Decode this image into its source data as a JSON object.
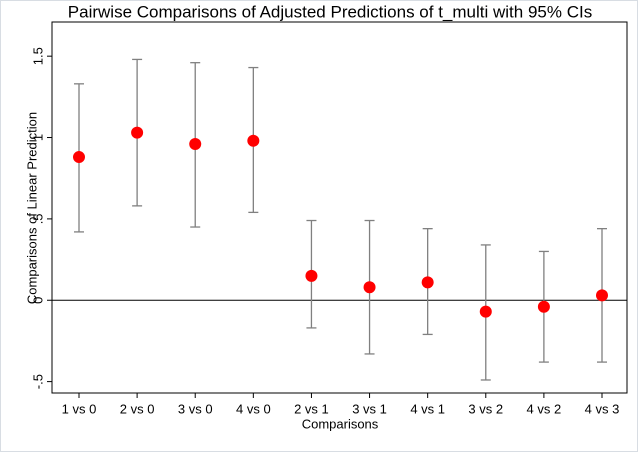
{
  "chart_data": {
    "type": "errorbar",
    "title": "Pairwise Comparisons of Adjusted Predictions of t_multi with 95% CIs",
    "x_label": "Comparisons",
    "y_label": "Comparisons of Linear Prediction",
    "categories": [
      "1 vs 0",
      "2 vs 0",
      "3 vs 0",
      "4 vs 0",
      "2 vs 1",
      "3 vs 1",
      "4 vs 1",
      "3 vs 2",
      "4 vs 2",
      "4 vs 3"
    ],
    "values": [
      0.88,
      1.03,
      0.96,
      0.98,
      0.15,
      0.08,
      0.11,
      -0.07,
      -0.04,
      0.03
    ],
    "ci_lower": [
      0.42,
      0.58,
      0.45,
      0.54,
      -0.17,
      -0.33,
      -0.21,
      -0.49,
      -0.38,
      -0.38
    ],
    "ci_upper": [
      1.33,
      1.48,
      1.46,
      1.43,
      0.49,
      0.49,
      0.44,
      0.34,
      0.3,
      0.44
    ],
    "color": "#ff0000",
    "ci_color": "#808080",
    "reference_line": 0,
    "ylim": [
      -0.57,
      1.71
    ],
    "yticks": [
      {
        "value": -0.5,
        "label": "-.5"
      },
      0,
      {
        "value": 0.5,
        "label": ".5"
      },
      1,
      {
        "value": 1.5,
        "label": "1.5"
      }
    ],
    "grid": false
  }
}
